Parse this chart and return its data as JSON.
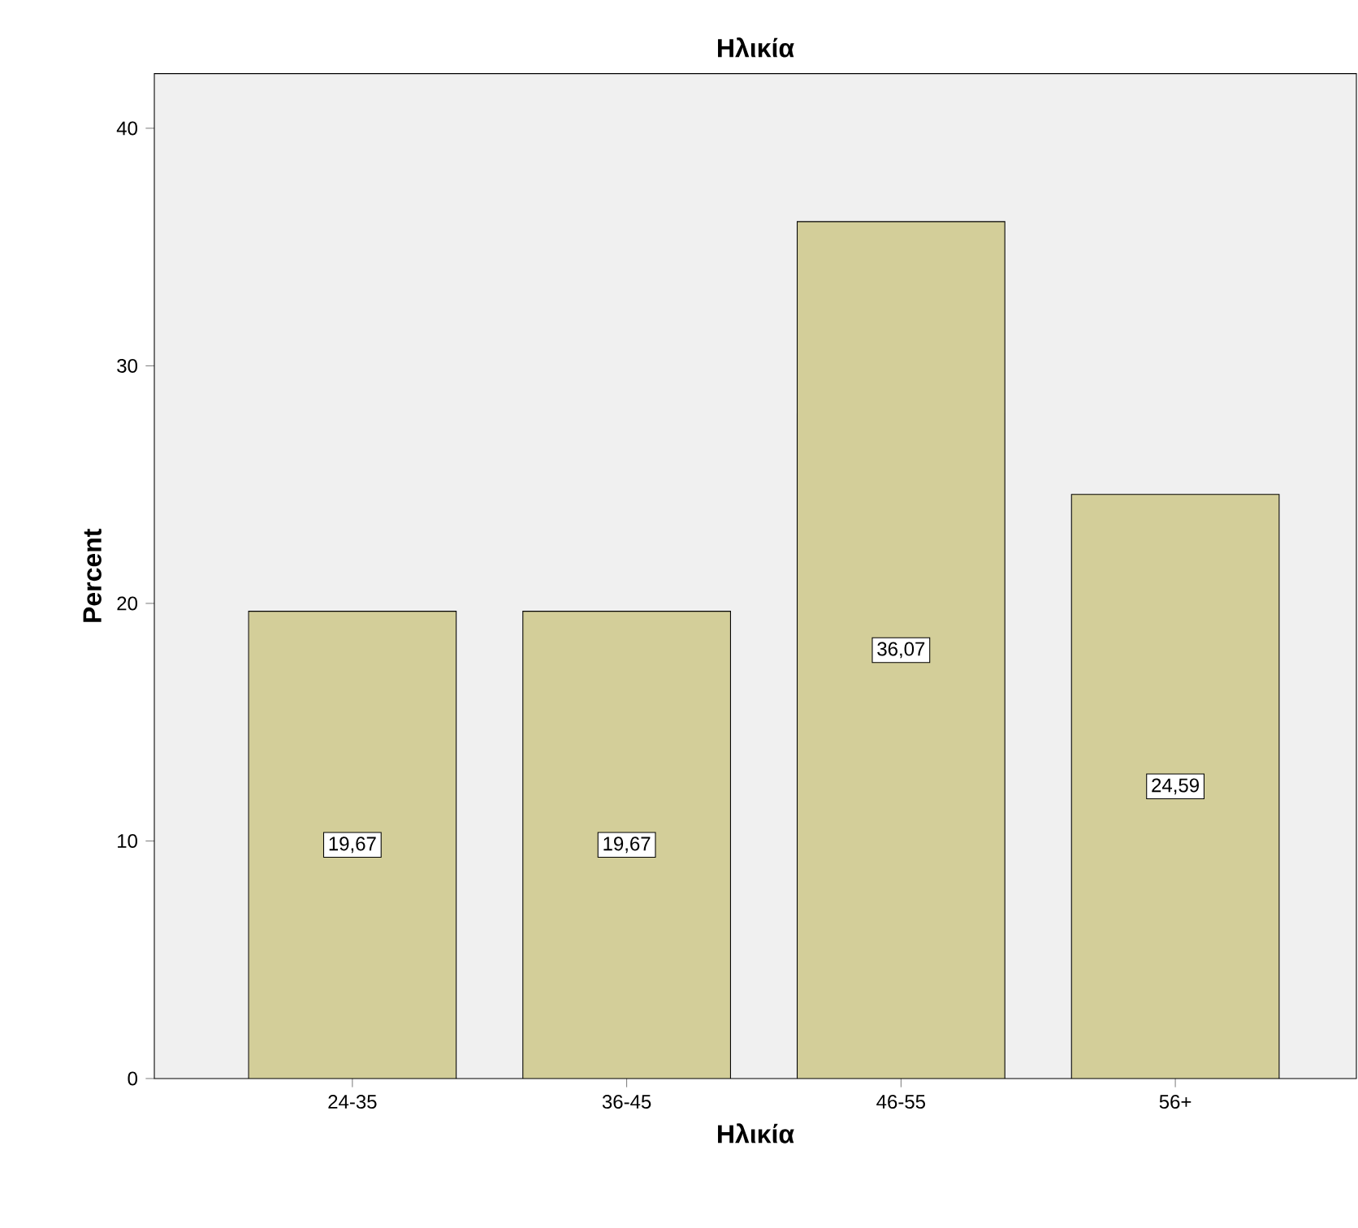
{
  "chart_data": {
    "type": "bar",
    "title": "Ηλικία",
    "xlabel": "Ηλικία",
    "ylabel": "Percent",
    "categories": [
      "24-35",
      "36-45",
      "46-55",
      "56+"
    ],
    "values": [
      19.67,
      19.67,
      36.07,
      24.59
    ],
    "value_labels": [
      "19,67",
      "19,67",
      "36,07",
      "24,59"
    ],
    "color": "#d3ce99",
    "ylim": [
      0,
      42.3
    ],
    "yticks": [
      0,
      10,
      20,
      30,
      40
    ]
  }
}
